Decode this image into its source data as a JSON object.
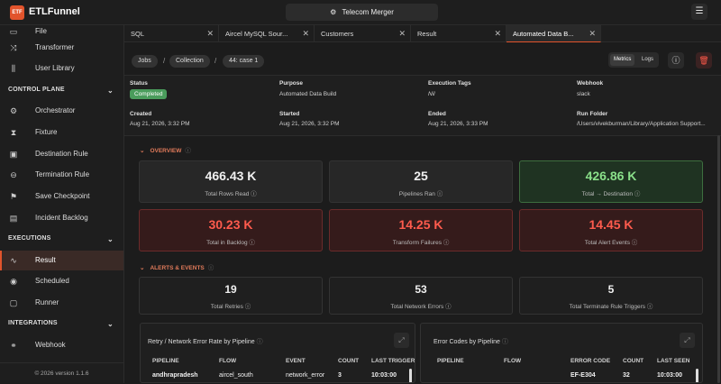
{
  "app": {
    "logo_text": "ETF",
    "name": "ETLFunnel",
    "window_title": "Telecom Merger",
    "version": "© 2026 version 1.1.6",
    "accent": "#e2542c"
  },
  "sidebar": {
    "top_items": [
      {
        "label": "File",
        "icon": "file-icon"
      },
      {
        "label": "Transformer",
        "icon": "shuffle-icon"
      },
      {
        "label": "User Library",
        "icon": "library-icon"
      }
    ],
    "sections": [
      {
        "title": "CONTROL PLANE",
        "items": [
          {
            "label": "Orchestrator",
            "icon": "orchestrator-icon"
          },
          {
            "label": "Fixture",
            "icon": "hourglass-icon"
          },
          {
            "label": "Destination Rule",
            "icon": "destination-icon"
          },
          {
            "label": "Termination Rule",
            "icon": "termination-icon"
          },
          {
            "label": "Save Checkpoint",
            "icon": "signpost-icon"
          },
          {
            "label": "Incident Backlog",
            "icon": "clipboard-icon"
          }
        ]
      },
      {
        "title": "EXECUTIONS",
        "items": [
          {
            "label": "Result",
            "icon": "activity-icon"
          },
          {
            "label": "Scheduled",
            "icon": "play-circle-icon"
          },
          {
            "label": "Runner",
            "icon": "runner-icon"
          }
        ]
      },
      {
        "title": "INTEGRATIONS",
        "items": [
          {
            "label": "Webhook",
            "icon": "webhook-icon"
          }
        ]
      }
    ]
  },
  "tabs": [
    {
      "label": "SQL"
    },
    {
      "label": "Aircel MySQL Sour..."
    },
    {
      "label": "Customers"
    },
    {
      "label": "Result"
    },
    {
      "label": "Automated Data B..."
    }
  ],
  "breadcrumb": [
    "Jobs",
    "Collection",
    "44: case 1"
  ],
  "view_toggle": {
    "metrics": "Metrics",
    "logs": "Logs"
  },
  "meta": {
    "status_label": "Status",
    "status": "Completed",
    "purpose_label": "Purpose",
    "purpose": "Automated Data Build",
    "tags_label": "Execution Tags",
    "tags": "Nil",
    "webhook_label": "Webhook",
    "webhook": "slack",
    "created_label": "Created",
    "created": "Aug 21, 2026, 3:32 PM",
    "started_label": "Started",
    "started": "Aug 21, 2026, 3:32 PM",
    "ended_label": "Ended",
    "ended": "Aug 21, 2026, 3:33 PM",
    "folder_label": "Run Folder",
    "folder": "/Users/vivekburman/Library/Application Support..."
  },
  "overview": {
    "title": "OVERVIEW",
    "cards": [
      {
        "value": "466.43 K",
        "label": "Total Rows Read"
      },
      {
        "value": "25",
        "label": "Pipelines Ran"
      },
      {
        "value": "426.86 K",
        "label": "Total → Destination"
      },
      {
        "value": "30.23 K",
        "label": "Total in Backlog"
      },
      {
        "value": "14.25 K",
        "label": "Transform Failures"
      },
      {
        "value": "14.45 K",
        "label": "Total Alert Events"
      }
    ]
  },
  "alerts": {
    "title": "ALERTS & EVENTS",
    "cards": [
      {
        "value": "19",
        "label": "Total Retries"
      },
      {
        "value": "53",
        "label": "Total Network Errors"
      },
      {
        "value": "5",
        "label": "Total Terminate Rule Triggers"
      }
    ]
  },
  "retry_panel": {
    "title": "Retry / Network Error Rate by Pipeline",
    "columns": [
      "PIPELINE",
      "FLOW",
      "EVENT",
      "COUNT",
      "LAST TRIGGER"
    ],
    "row": [
      "andhrapradesh",
      "aircel_south",
      "network_error",
      "3",
      "10:03:00"
    ]
  },
  "error_panel": {
    "title": "Error Codes by Pipeline",
    "columns": [
      "PIPELINE",
      "FLOW",
      "ERROR CODE",
      "COUNT",
      "LAST SEEN"
    ],
    "row": [
      "",
      "",
      "EF-E304",
      "32",
      "10:03:00"
    ]
  }
}
